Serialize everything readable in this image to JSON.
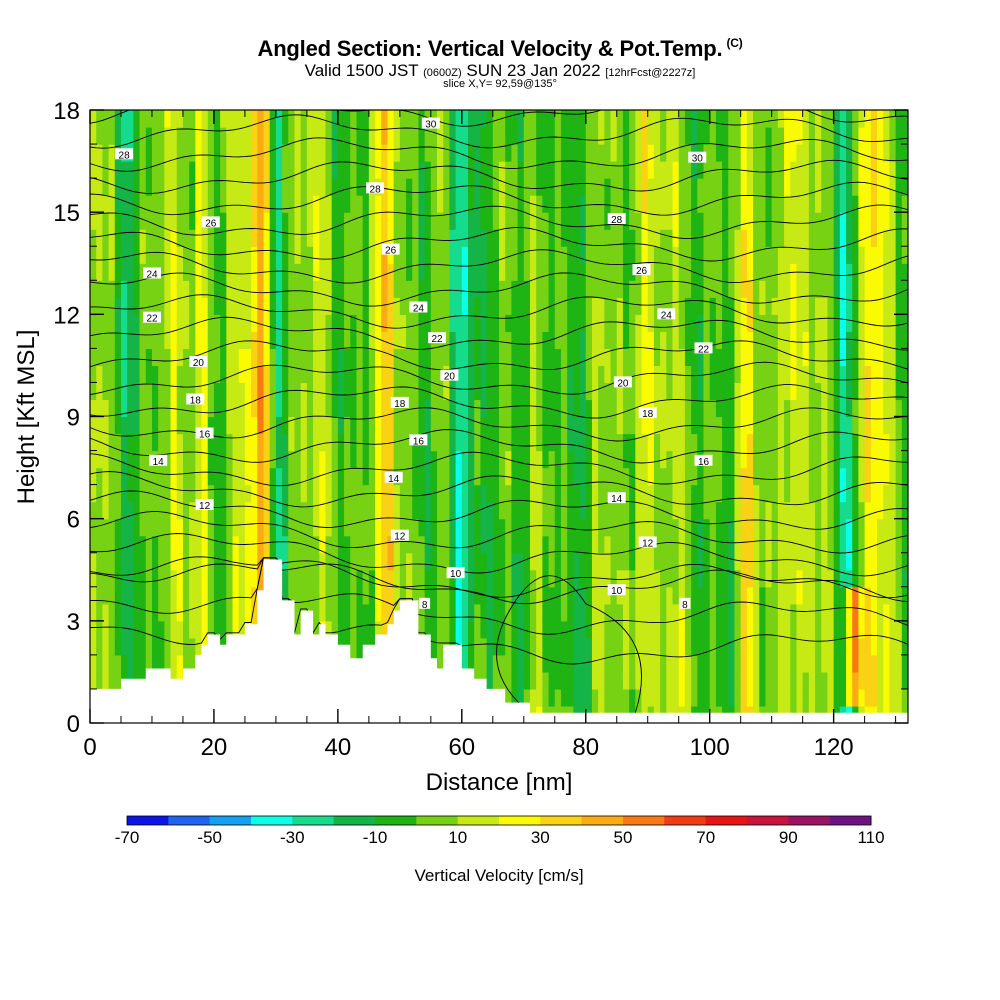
{
  "header": {
    "title": "Angled Section: Vertical Velocity & Pot.Temp.",
    "title_unit": "(C)",
    "subtitle_a": "Valid 1500 JST",
    "subtitle_b": "(0600Z)",
    "subtitle_c": "SUN 23 Jan 2022",
    "subtitle_d": "[12hrFcst@2227z]",
    "slice": "slice X,Y= 92,59@135°"
  },
  "chart_data": {
    "type": "heatmap",
    "title": "Angled Section: Vertical Velocity & Pot.Temp.",
    "xlabel": "Distance [nm]",
    "ylabel": "Height [Kft MSL]",
    "xlim": [
      0,
      132
    ],
    "ylim": [
      0,
      18
    ],
    "x_ticks": [
      "0",
      "20",
      "40",
      "60",
      "80",
      "100",
      "120"
    ],
    "y_ticks": [
      "0",
      "3",
      "6",
      "9",
      "12",
      "15",
      "18"
    ],
    "colorbar": {
      "label": "Vertical Velocity [cm/s]",
      "tick_labels": [
        "-70",
        "-50",
        "-30",
        "-10",
        "10",
        "30",
        "50",
        "70",
        "90",
        "110"
      ],
      "colors": [
        "#0a14e6",
        "#1e64f0",
        "#14a0f0",
        "#0affe6",
        "#14dc8c",
        "#14b446",
        "#1eb414",
        "#78d214",
        "#c8ea14",
        "#fafa00",
        "#fad214",
        "#faaa14",
        "#fa7814",
        "#f03c14",
        "#e61414",
        "#c8143c",
        "#9b1464",
        "#6e1482"
      ]
    },
    "terrain_kft": [
      [
        0,
        1.0
      ],
      [
        5,
        1.0
      ],
      [
        5,
        1.3
      ],
      [
        9,
        1.3
      ],
      [
        9,
        1.6
      ],
      [
        13,
        1.6
      ],
      [
        13,
        1.3
      ],
      [
        15,
        1.3
      ],
      [
        15,
        1.6
      ],
      [
        17,
        1.6
      ],
      [
        17,
        2.0
      ],
      [
        18,
        2.0
      ],
      [
        18,
        2.3
      ],
      [
        19,
        2.3
      ],
      [
        19,
        2.6
      ],
      [
        21,
        2.6
      ],
      [
        21,
        2.3
      ],
      [
        22,
        2.3
      ],
      [
        22,
        2.6
      ],
      [
        25,
        2.6
      ],
      [
        25,
        2.9
      ],
      [
        27,
        2.9
      ],
      [
        27,
        3.9
      ],
      [
        28,
        3.9
      ],
      [
        28,
        4.8
      ],
      [
        31,
        4.8
      ],
      [
        31,
        3.6
      ],
      [
        33,
        3.6
      ],
      [
        33,
        2.6
      ],
      [
        34,
        2.6
      ],
      [
        34,
        3.3
      ],
      [
        36,
        3.3
      ],
      [
        36,
        2.6
      ],
      [
        37,
        2.6
      ],
      [
        37,
        2.9
      ],
      [
        38,
        2.9
      ],
      [
        38,
        2.6
      ],
      [
        40,
        2.6
      ],
      [
        40,
        2.3
      ],
      [
        42,
        2.3
      ],
      [
        42,
        1.9
      ],
      [
        44,
        1.9
      ],
      [
        44,
        2.3
      ],
      [
        46,
        2.3
      ],
      [
        46,
        2.6
      ],
      [
        48,
        2.6
      ],
      [
        48,
        2.9
      ],
      [
        49,
        2.9
      ],
      [
        49,
        3.3
      ],
      [
        50,
        3.3
      ],
      [
        50,
        3.6
      ],
      [
        53,
        3.6
      ],
      [
        53,
        2.6
      ],
      [
        55,
        2.6
      ],
      [
        55,
        1.9
      ],
      [
        56,
        1.9
      ],
      [
        56,
        1.6
      ],
      [
        57,
        1.6
      ],
      [
        57,
        2.3
      ],
      [
        60,
        2.3
      ],
      [
        60,
        1.6
      ],
      [
        62,
        1.6
      ],
      [
        62,
        1.3
      ],
      [
        64,
        1.3
      ],
      [
        64,
        1.0
      ],
      [
        67,
        1.0
      ],
      [
        67,
        0.6
      ],
      [
        71,
        0.6
      ],
      [
        71,
        0.3
      ],
      [
        132,
        0.3
      ]
    ],
    "isentrope_labels": [
      {
        "x": 5.5,
        "y": 16.7,
        "text": "28"
      },
      {
        "x": 19.5,
        "y": 14.7,
        "text": "26"
      },
      {
        "x": 10,
        "y": 13.2,
        "text": "24"
      },
      {
        "x": 10,
        "y": 11.9,
        "text": "22"
      },
      {
        "x": 17.5,
        "y": 10.6,
        "text": "20"
      },
      {
        "x": 17,
        "y": 9.5,
        "text": "18"
      },
      {
        "x": 18.5,
        "y": 8.5,
        "text": "16"
      },
      {
        "x": 11,
        "y": 7.7,
        "text": "14"
      },
      {
        "x": 18.5,
        "y": 6.4,
        "text": "12"
      },
      {
        "x": 55,
        "y": 17.6,
        "text": "30"
      },
      {
        "x": 46,
        "y": 15.7,
        "text": "28"
      },
      {
        "x": 48.5,
        "y": 13.9,
        "text": "26"
      },
      {
        "x": 53,
        "y": 12.2,
        "text": "24"
      },
      {
        "x": 56,
        "y": 11.3,
        "text": "22"
      },
      {
        "x": 58,
        "y": 10.2,
        "text": "20"
      },
      {
        "x": 50,
        "y": 9.4,
        "text": "18"
      },
      {
        "x": 53,
        "y": 8.3,
        "text": "16"
      },
      {
        "x": 49,
        "y": 7.2,
        "text": "14"
      },
      {
        "x": 50,
        "y": 5.5,
        "text": "12"
      },
      {
        "x": 59,
        "y": 4.4,
        "text": "10"
      },
      {
        "x": 54,
        "y": 3.5,
        "text": "8"
      },
      {
        "x": 98,
        "y": 16.6,
        "text": "30"
      },
      {
        "x": 85,
        "y": 14.8,
        "text": "28"
      },
      {
        "x": 89,
        "y": 13.3,
        "text": "26"
      },
      {
        "x": 93,
        "y": 12.0,
        "text": "24"
      },
      {
        "x": 99,
        "y": 11.0,
        "text": "22"
      },
      {
        "x": 86,
        "y": 10.0,
        "text": "20"
      },
      {
        "x": 90,
        "y": 9.1,
        "text": "18"
      },
      {
        "x": 99,
        "y": 7.7,
        "text": "16"
      },
      {
        "x": 85,
        "y": 6.6,
        "text": "14"
      },
      {
        "x": 90,
        "y": 5.3,
        "text": "12"
      },
      {
        "x": 85,
        "y": 3.9,
        "text": "10"
      },
      {
        "x": 96,
        "y": 3.5,
        "text": "8"
      }
    ],
    "updrafts": [
      {
        "x": 28,
        "y0": 0,
        "y1": 18,
        "w": 2.2,
        "amp": 38
      },
      {
        "x": 123,
        "y0": 0.3,
        "y1": 4.2,
        "w": 1.3,
        "amp": 60
      },
      {
        "x": 112,
        "y0": 0,
        "y1": 18,
        "w": 1.5,
        "amp": 22
      },
      {
        "x": 89,
        "y0": 0,
        "y1": 18,
        "w": 1.5,
        "amp": 22
      },
      {
        "x": 106,
        "y0": 0,
        "y1": 18,
        "w": 1.5,
        "amp": 24
      },
      {
        "x": 18,
        "y0": 0,
        "y1": 18,
        "w": 1.5,
        "amp": 20
      },
      {
        "x": 48,
        "y0": 0,
        "y1": 18,
        "w": 1.5,
        "amp": 22
      },
      {
        "x": 126,
        "y0": 0,
        "y1": 18,
        "w": 1.5,
        "amp": 24
      }
    ],
    "downdrafts": [
      {
        "x": 60,
        "y0": 0,
        "y1": 18,
        "w": 2.2,
        "amp": -40
      },
      {
        "x": 70,
        "y0": 0,
        "y1": 18,
        "w": 1.5,
        "amp": -20
      },
      {
        "x": 30,
        "y0": 0,
        "y1": 18,
        "w": 1.5,
        "amp": -25
      },
      {
        "x": 5,
        "y0": 0,
        "y1": 18,
        "w": 1.5,
        "amp": -20
      },
      {
        "x": 80,
        "y0": 0,
        "y1": 18,
        "w": 1.5,
        "amp": -18
      },
      {
        "x": 104,
        "y0": 0,
        "y1": 18,
        "w": 1.5,
        "amp": -20
      },
      {
        "x": 122,
        "y0": 0,
        "y1": 18,
        "w": 1.5,
        "amp": -20
      }
    ]
  }
}
